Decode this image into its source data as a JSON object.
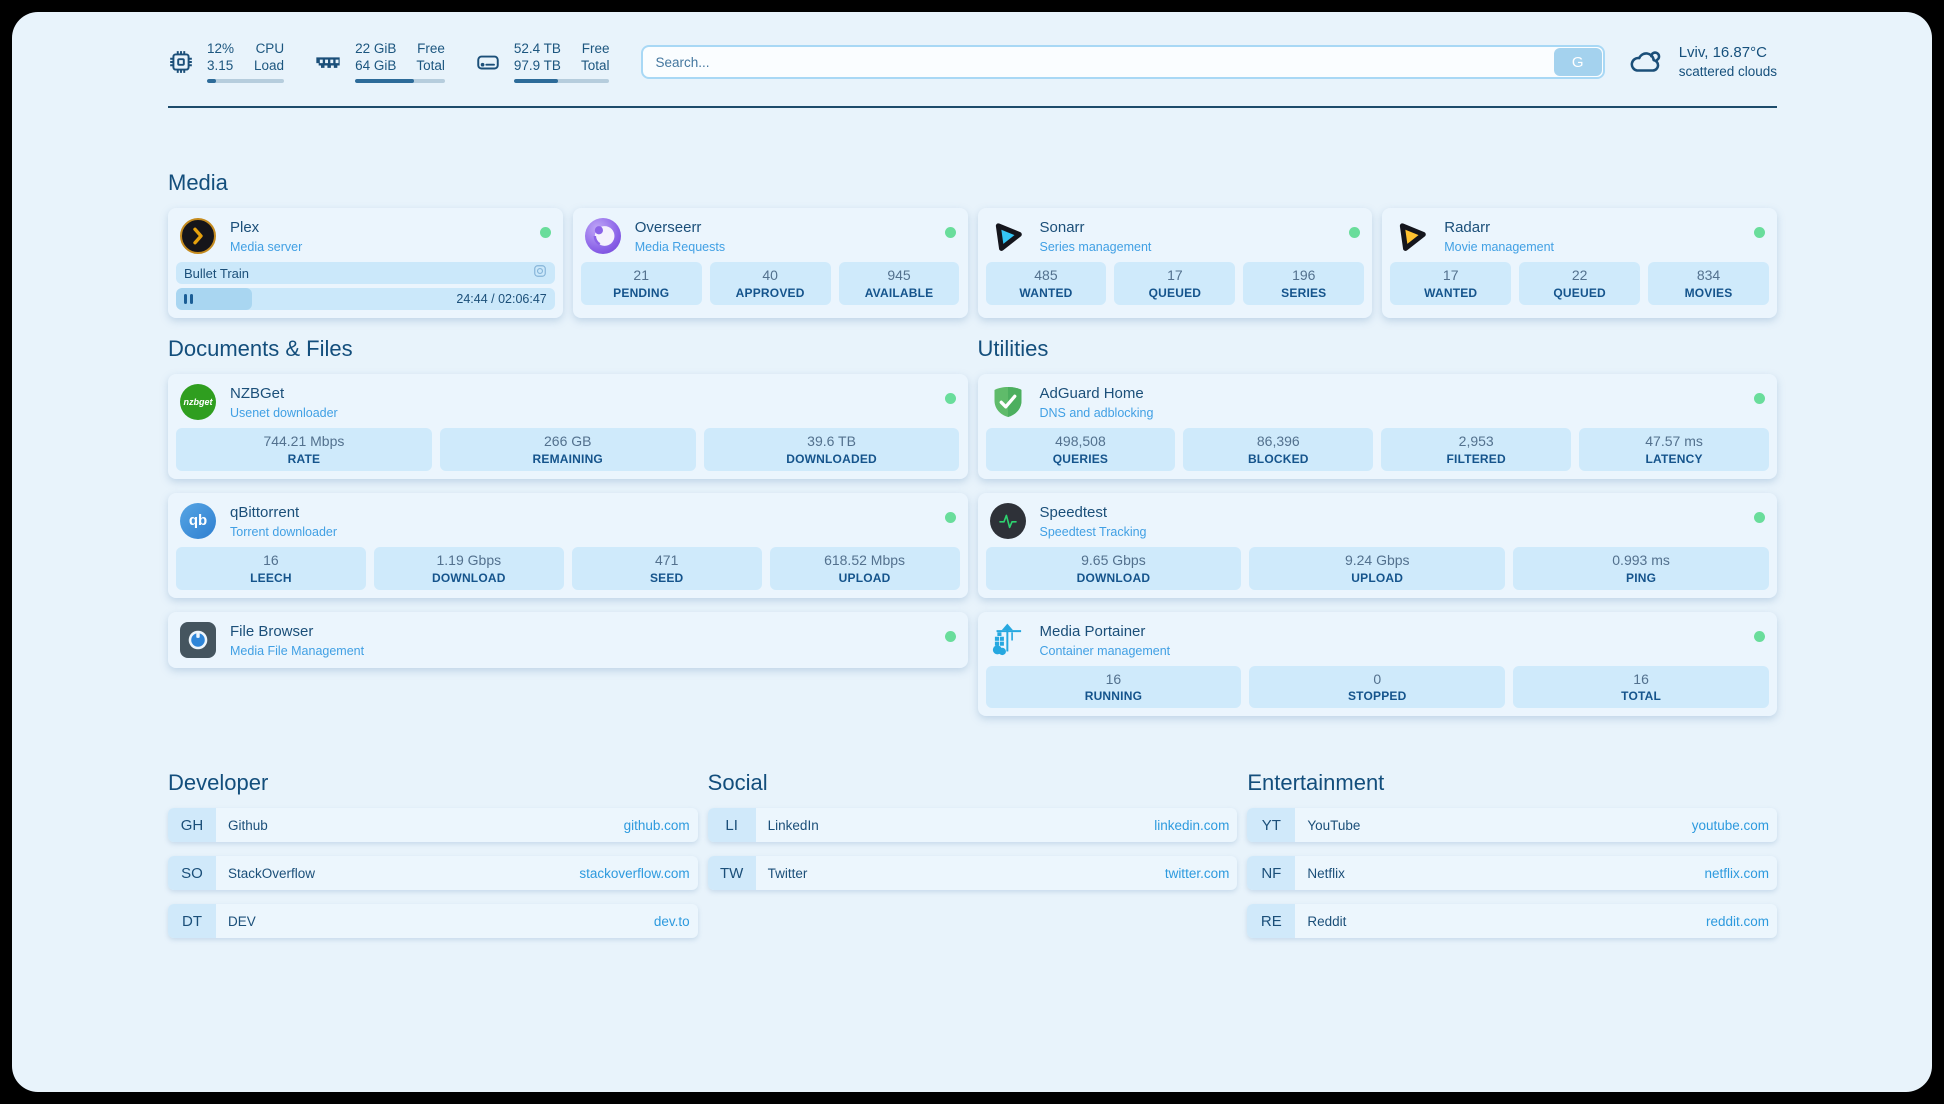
{
  "header": {
    "stats": [
      {
        "icon": "cpu-icon",
        "value_top": "12%",
        "value_bottom": "3.15",
        "label_top": "CPU",
        "label_bottom": "Load",
        "progress_pct": 12
      },
      {
        "icon": "memory-icon",
        "value_top": "22 GiB",
        "value_bottom": "64 GiB",
        "label_top": "Free",
        "label_bottom": "Total",
        "progress_pct": 66
      },
      {
        "icon": "disk-icon",
        "value_top": "52.4 TB",
        "value_bottom": "97.9 TB",
        "label_top": "Free",
        "label_bottom": "Total",
        "progress_pct": 46
      }
    ],
    "search": {
      "placeholder": "Search...",
      "button_label": "G"
    },
    "weather": {
      "location_temp": "Lviv, 16.87°C",
      "condition": "scattered clouds"
    }
  },
  "sections": {
    "media": {
      "title": "Media"
    },
    "documents": {
      "title": "Documents & Files"
    },
    "utilities": {
      "title": "Utilities"
    },
    "developer": {
      "title": "Developer"
    },
    "social": {
      "title": "Social"
    },
    "entertainment": {
      "title": "Entertainment"
    }
  },
  "apps": {
    "plex": {
      "name": "Plex",
      "subtitle": "Media server",
      "status": "online",
      "now_playing": "Bullet Train",
      "time": "24:44 / 02:06:47",
      "progress_pct": 20
    },
    "overseerr": {
      "name": "Overseerr",
      "subtitle": "Media Requests",
      "status": "online",
      "stats": [
        {
          "value": "21",
          "label": "PENDING"
        },
        {
          "value": "40",
          "label": "APPROVED"
        },
        {
          "value": "945",
          "label": "AVAILABLE"
        }
      ]
    },
    "sonarr": {
      "name": "Sonarr",
      "subtitle": "Series management",
      "status": "online",
      "stats": [
        {
          "value": "485",
          "label": "WANTED"
        },
        {
          "value": "17",
          "label": "QUEUED"
        },
        {
          "value": "196",
          "label": "SERIES"
        }
      ]
    },
    "radarr": {
      "name": "Radarr",
      "subtitle": "Movie management",
      "status": "online",
      "stats": [
        {
          "value": "17",
          "label": "WANTED"
        },
        {
          "value": "22",
          "label": "QUEUED"
        },
        {
          "value": "834",
          "label": "MOVIES"
        }
      ]
    },
    "nzbget": {
      "name": "NZBGet",
      "subtitle": "Usenet downloader",
      "status": "online",
      "stats": [
        {
          "value": "744.21 Mbps",
          "label": "RATE"
        },
        {
          "value": "266 GB",
          "label": "REMAINING"
        },
        {
          "value": "39.6 TB",
          "label": "DOWNLOADED"
        }
      ]
    },
    "qbittorrent": {
      "name": "qBittorrent",
      "subtitle": "Torrent downloader",
      "status": "online",
      "stats": [
        {
          "value": "16",
          "label": "LEECH"
        },
        {
          "value": "1.19 Gbps",
          "label": "DOWNLOAD"
        },
        {
          "value": "471",
          "label": "SEED"
        },
        {
          "value": "618.52 Mbps",
          "label": "UPLOAD"
        }
      ]
    },
    "filebrowser": {
      "name": "File Browser",
      "subtitle": "Media File Management",
      "status": "online"
    },
    "adguard": {
      "name": "AdGuard Home",
      "subtitle": "DNS and adblocking",
      "status": "online",
      "stats": [
        {
          "value": "498,508",
          "label": "QUERIES"
        },
        {
          "value": "86,396",
          "label": "BLOCKED"
        },
        {
          "value": "2,953",
          "label": "FILTERED"
        },
        {
          "value": "47.57 ms",
          "label": "LATENCY"
        }
      ]
    },
    "speedtest": {
      "name": "Speedtest",
      "subtitle": "Speedtest Tracking",
      "status": "online",
      "stats": [
        {
          "value": "9.65 Gbps",
          "label": "DOWNLOAD"
        },
        {
          "value": "9.24 Gbps",
          "label": "UPLOAD"
        },
        {
          "value": "0.993 ms",
          "label": "PING"
        }
      ]
    },
    "portainer": {
      "name": "Media Portainer",
      "subtitle": "Container management",
      "status": "online",
      "stats": [
        {
          "value": "16",
          "label": "RUNNING"
        },
        {
          "value": "0",
          "label": "STOPPED"
        },
        {
          "value": "16",
          "label": "TOTAL"
        }
      ]
    }
  },
  "links": {
    "developer": [
      {
        "abbr": "GH",
        "name": "Github",
        "url": "github.com"
      },
      {
        "abbr": "SO",
        "name": "StackOverflow",
        "url": "stackoverflow.com"
      },
      {
        "abbr": "DT",
        "name": "DEV",
        "url": "dev.to"
      }
    ],
    "social": [
      {
        "abbr": "LI",
        "name": "LinkedIn",
        "url": "linkedin.com"
      },
      {
        "abbr": "TW",
        "name": "Twitter",
        "url": "twitter.com"
      }
    ],
    "entertainment": [
      {
        "abbr": "YT",
        "name": "YouTube",
        "url": "youtube.com"
      },
      {
        "abbr": "NF",
        "name": "Netflix",
        "url": "netflix.com"
      },
      {
        "abbr": "RE",
        "name": "Reddit",
        "url": "reddit.com"
      }
    ]
  },
  "colors": {
    "accent_navy": "#1b4f79",
    "subtitle_blue": "#41a0e4",
    "status_online": "#69dd9b",
    "tile_bg": "#cfeafb",
    "url_blue": "#2d9ade",
    "divider": "#1d4b6b"
  }
}
